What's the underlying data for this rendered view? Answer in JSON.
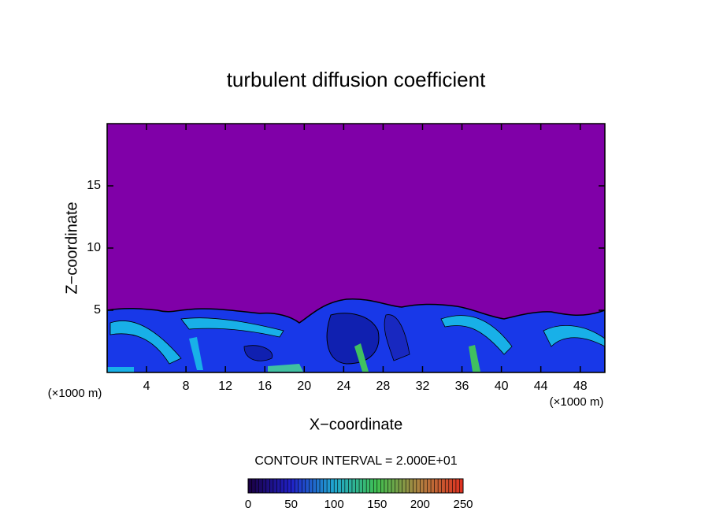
{
  "chart_data": {
    "type": "contour",
    "title": "turbulent diffusion coefficient",
    "xlabel": "X−coordinate",
    "ylabel": "Z−coordinate",
    "x_unit_label": "(×1000 m)",
    "y_unit_label": "(×1000 m)",
    "xlim": [
      0,
      50.5
    ],
    "xticks": [
      4,
      8,
      12,
      16,
      20,
      24,
      28,
      32,
      36,
      40,
      44,
      48
    ],
    "ylim": [
      0,
      20
    ],
    "yticks": [
      5,
      10,
      15
    ],
    "background_color": "#8000a8",
    "colorbar": {
      "label": "CONTOUR INTERVAL = 2.000E+01",
      "lim": [
        0,
        250
      ],
      "ticks": [
        0,
        50,
        100,
        150,
        200,
        250
      ]
    }
  }
}
